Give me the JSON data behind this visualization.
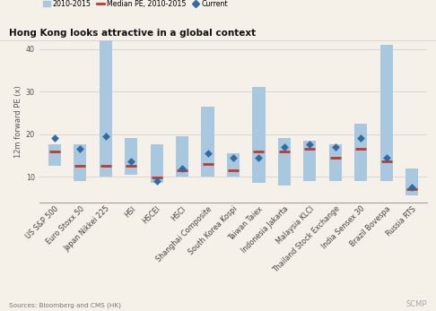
{
  "title": "Hong Kong looks attractive in a global context",
  "ylabel": "12m forward PE (x)",
  "categories": [
    "US S&P 500",
    "Euro Stoxx 50",
    "Japan Nikkei 225",
    "HSI",
    "HSCEI",
    "HSCI",
    "Shanghai Composite",
    "South Korea Kospi",
    "Taiwan Taiex",
    "Indonesia Jakarta",
    "Malaysia KLCI",
    "Thailand Stock Exchange",
    "India Sensex 30",
    "Brazil Bovespa",
    "Russia RTS"
  ],
  "bar_low": [
    12.5,
    9.0,
    10.0,
    10.5,
    8.5,
    10.0,
    10.0,
    10.0,
    8.5,
    8.0,
    9.0,
    9.0,
    9.0,
    9.0,
    5.5
  ],
  "bar_high": [
    17.5,
    17.5,
    42.0,
    19.0,
    17.5,
    19.5,
    26.5,
    15.5,
    31.0,
    19.0,
    18.5,
    17.5,
    22.5,
    41.0,
    12.0
  ],
  "median": [
    16.0,
    12.5,
    12.5,
    12.5,
    9.8,
    11.5,
    13.0,
    11.5,
    16.0,
    16.0,
    16.5,
    14.5,
    16.5,
    13.5,
    7.0
  ],
  "current": [
    19.0,
    16.5,
    19.5,
    13.5,
    9.0,
    12.0,
    15.5,
    14.5,
    14.5,
    17.0,
    17.5,
    17.0,
    19.0,
    14.5,
    7.5
  ],
  "bar_color": "#a8c8e0",
  "median_color": "#c0392b",
  "current_color": "#2e6da4",
  "background_color": "#f5f0e8",
  "grid_color": "#cccccc",
  "ylim": [
    4,
    42
  ],
  "yticks": [
    10,
    20,
    30,
    40
  ],
  "source_text": "Sources: Bloomberg and CMS (HK)",
  "brand_text": "SCMP",
  "legend_items": [
    "2010-2015",
    "Median PE, 2010-2015",
    "Current"
  ],
  "title_fontsize": 7.5,
  "label_fontsize": 6,
  "tick_fontsize": 5.8,
  "bar_width": 0.5
}
